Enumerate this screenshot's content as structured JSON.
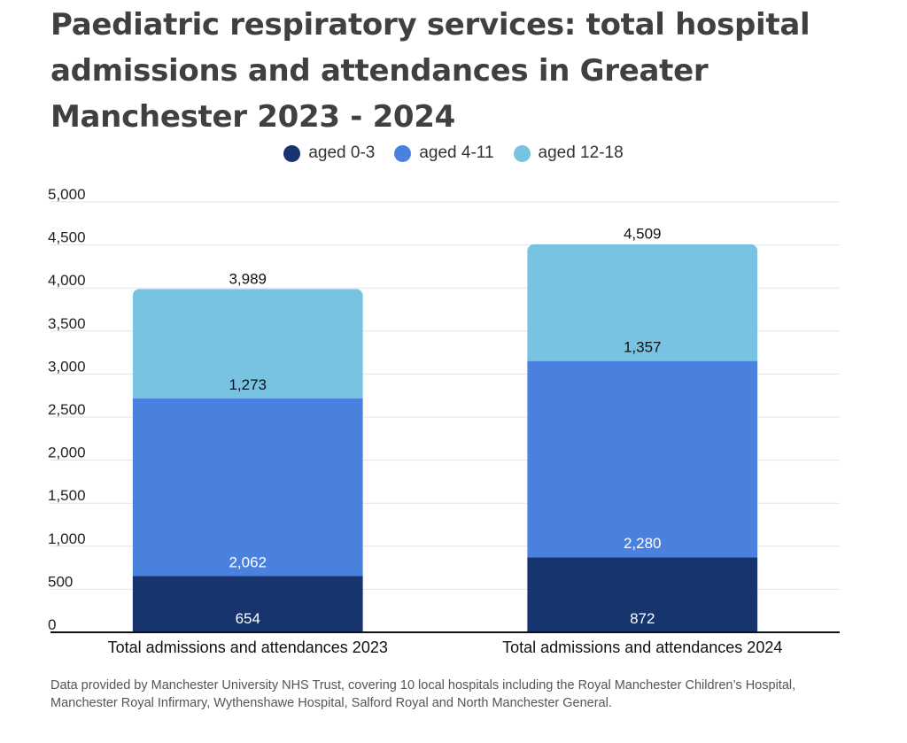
{
  "chart_data": {
    "type": "bar",
    "stacked": true,
    "title": "Paediatric respiratory services: total hospital admissions and attendances in Greater Manchester 2023 - 2024",
    "categories": [
      "Total admissions and attendances 2023",
      "Total admissions and attendances 2024"
    ],
    "series": [
      {
        "name": "aged 0-3",
        "values": [
          654,
          872
        ],
        "labels": [
          "654",
          "872"
        ],
        "color": "#17346e",
        "label_color": "#ffffff"
      },
      {
        "name": "aged 4-11",
        "values": [
          2062,
          2280
        ],
        "labels": [
          "2,062",
          "2,280"
        ],
        "color": "#4a81df",
        "label_color": "#ffffff"
      },
      {
        "name": "aged 12-18",
        "values": [
          1273,
          1357
        ],
        "labels": [
          "1,273",
          "1,357"
        ],
        "color": "#78c2e2",
        "label_color": "#111111"
      }
    ],
    "totals": [
      3989,
      4509
    ],
    "total_labels": [
      "3,989",
      "4,509"
    ],
    "yticks": [
      "0",
      "500",
      "1,000",
      "1,500",
      "2,000",
      "2,500",
      "3,000",
      "3,500",
      "4,000",
      "4,500",
      "5,000"
    ],
    "ylim": [
      0,
      5000
    ],
    "grid": true,
    "legend_position": "top-center"
  },
  "source_note": "Data provided by Manchester University NHS Trust, covering 10 local hospitals including the Royal Manchester Children’s Hospital, Manchester Royal Infirmary, Wythenshawe Hospital, Salford Royal and North Manchester General."
}
